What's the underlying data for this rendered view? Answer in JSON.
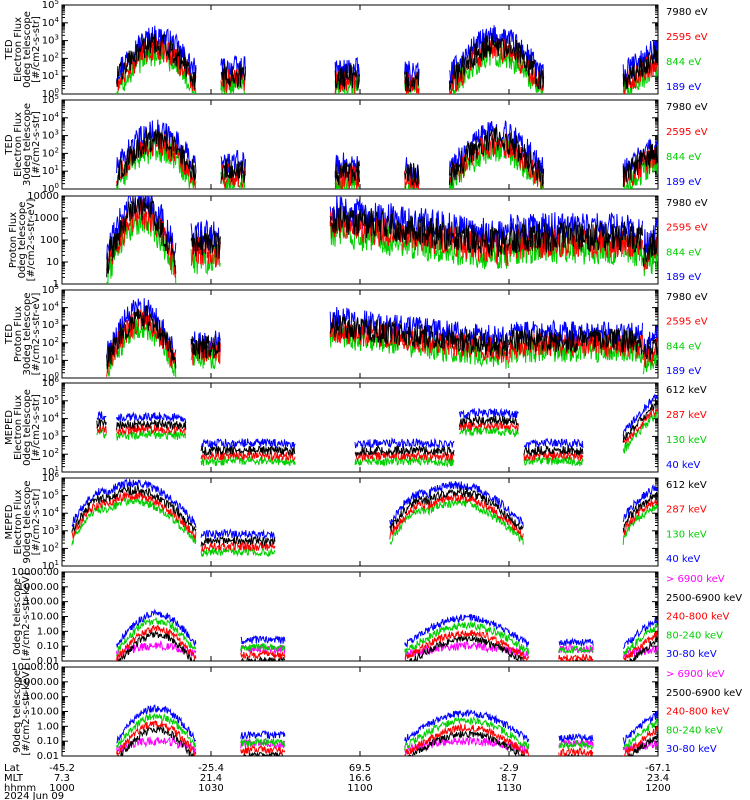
{
  "chart_data": [
    {
      "type": "line",
      "panel": 1,
      "ylabel_lines": [
        "TED",
        "Electron Flux",
        "0deg telescope",
        "[#/cm2-s-str]"
      ],
      "ytick_labels": [
        "10^0",
        "10^1",
        "10^2",
        "10^3",
        "10^4",
        "10^5"
      ],
      "yscale": "log",
      "ylim": [
        1,
        100000
      ],
      "series": [
        {
          "name": "7980 eV",
          "color": "#000000"
        },
        {
          "name": "2595 eV",
          "color": "#ff0000"
        },
        {
          "name": "844 eV",
          "color": "#00d000"
        },
        {
          "name": "189 eV",
          "color": "#0000ff"
        }
      ]
    },
    {
      "type": "line",
      "panel": 2,
      "ylabel_lines": [
        "TED",
        "Electron Flux",
        "30deg telescope",
        "[#/cm2-s-str]"
      ],
      "ytick_labels": [
        "10^0",
        "10^1",
        "10^2",
        "10^3",
        "10^4",
        "10^5"
      ],
      "yscale": "log",
      "ylim": [
        1,
        100000
      ],
      "series": [
        {
          "name": "7980 eV",
          "color": "#000000"
        },
        {
          "name": "2595 eV",
          "color": "#ff0000"
        },
        {
          "name": "844 eV",
          "color": "#00d000"
        },
        {
          "name": "189 eV",
          "color": "#0000ff"
        }
      ]
    },
    {
      "type": "line",
      "panel": 3,
      "ylabel_lines": [
        "Proton Flux",
        "0deg telescope",
        "[#/cm2-s-str-eV]"
      ],
      "ytick_labels": [
        "1",
        "10",
        "100",
        "1000",
        "10000"
      ],
      "yscale": "log",
      "ylim": [
        1,
        10000
      ],
      "series": [
        {
          "name": "7980 eV",
          "color": "#000000"
        },
        {
          "name": "2595 eV",
          "color": "#ff0000"
        },
        {
          "name": "844 eV",
          "color": "#00d000"
        },
        {
          "name": "189 eV",
          "color": "#0000ff"
        }
      ]
    },
    {
      "type": "line",
      "panel": 4,
      "ylabel_lines": [
        "TED",
        "Proton Flux",
        "30deg telescope",
        "[#/cm2-s-str-eV]"
      ],
      "ytick_labels": [
        "10^0",
        "10^1",
        "10^2",
        "10^3",
        "10^4",
        "10^5"
      ],
      "yscale": "log",
      "ylim": [
        1,
        100000
      ],
      "series": [
        {
          "name": "7980 eV",
          "color": "#000000"
        },
        {
          "name": "2595 eV",
          "color": "#ff0000"
        },
        {
          "name": "844 eV",
          "color": "#00d000"
        },
        {
          "name": "189 eV",
          "color": "#0000ff"
        }
      ]
    },
    {
      "type": "line",
      "panel": 5,
      "ylabel_lines": [
        "MEPED",
        "Electron Flux",
        "0deg telescope",
        "[#/cm2-s-str]"
      ],
      "ytick_labels": [
        "10^1",
        "10^2",
        "10^3",
        "10^4",
        "10^5",
        "10^6"
      ],
      "yscale": "log",
      "ylim": [
        10,
        1000000
      ],
      "series": [
        {
          "name": "612 keV",
          "color": "#000000"
        },
        {
          "name": "287 keV",
          "color": "#ff0000"
        },
        {
          "name": "130 keV",
          "color": "#00d000"
        },
        {
          "name": "40 keV",
          "color": "#0000ff"
        }
      ]
    },
    {
      "type": "line",
      "panel": 6,
      "ylabel_lines": [
        "MEPED",
        "Electron Flux",
        "90deg telescope",
        "[#/cm2-s-str]"
      ],
      "ytick_labels": [
        "10^1",
        "10^2",
        "10^3",
        "10^4",
        "10^5",
        "10^6"
      ],
      "yscale": "log",
      "ylim": [
        10,
        1000000
      ],
      "series": [
        {
          "name": "612 keV",
          "color": "#000000"
        },
        {
          "name": "287 keV",
          "color": "#ff0000"
        },
        {
          "name": "130 keV",
          "color": "#00d000"
        },
        {
          "name": "40 keV",
          "color": "#0000ff"
        }
      ]
    },
    {
      "type": "line",
      "panel": 7,
      "ylabel_lines": [
        "0deg telescope",
        "[#/cm2-s-str-keV]"
      ],
      "ytick_labels": [
        "0.01",
        "0.10",
        "1.00",
        "10.00",
        "100.00",
        "1000.00",
        "10000.00"
      ],
      "yscale": "log",
      "ylim": [
        0.01,
        10000
      ],
      "series": [
        {
          "name": "> 6900 keV",
          "color": "#ff00ff"
        },
        {
          "name": "2500-6900 keV",
          "color": "#000000"
        },
        {
          "name": "240-800 keV",
          "color": "#ff0000"
        },
        {
          "name": "80-240 keV",
          "color": "#00d000"
        },
        {
          "name": "30-80 keV",
          "color": "#0000ff"
        }
      ]
    },
    {
      "type": "line",
      "panel": 8,
      "ylabel_lines": [
        "90deg telescope",
        "[#/cm2-s-str-keV]"
      ],
      "ytick_labels": [
        "0.01",
        "0.10",
        "1.00",
        "10.00",
        "100.00",
        "1000.00",
        "10000.00"
      ],
      "yscale": "log",
      "ylim": [
        0.01,
        10000
      ],
      "series": [
        {
          "name": "> 6900 keV",
          "color": "#ff00ff"
        },
        {
          "name": "2500-6900 keV",
          "color": "#000000"
        },
        {
          "name": "240-800 keV",
          "color": "#ff0000"
        },
        {
          "name": "80-240 keV",
          "color": "#00d000"
        },
        {
          "name": "30-80 keV",
          "color": "#0000ff"
        }
      ]
    }
  ],
  "xaxis": {
    "row_labels": [
      "Lat",
      "MLT",
      "hhmm"
    ],
    "ticks": [
      {
        "lat": "-45.2",
        "mlt": "7.3",
        "hhmm": "1000"
      },
      {
        "lat": "-25.4",
        "mlt": "21.4",
        "hhmm": "1030"
      },
      {
        "lat": "69.5",
        "mlt": "16.6",
        "hhmm": "1100"
      },
      {
        "lat": "-2.9",
        "mlt": "8.7",
        "hhmm": "1130"
      },
      {
        "lat": "-67.1",
        "mlt": "23.4",
        "hhmm": "1200"
      }
    ],
    "date": "2024 Jun 09"
  }
}
